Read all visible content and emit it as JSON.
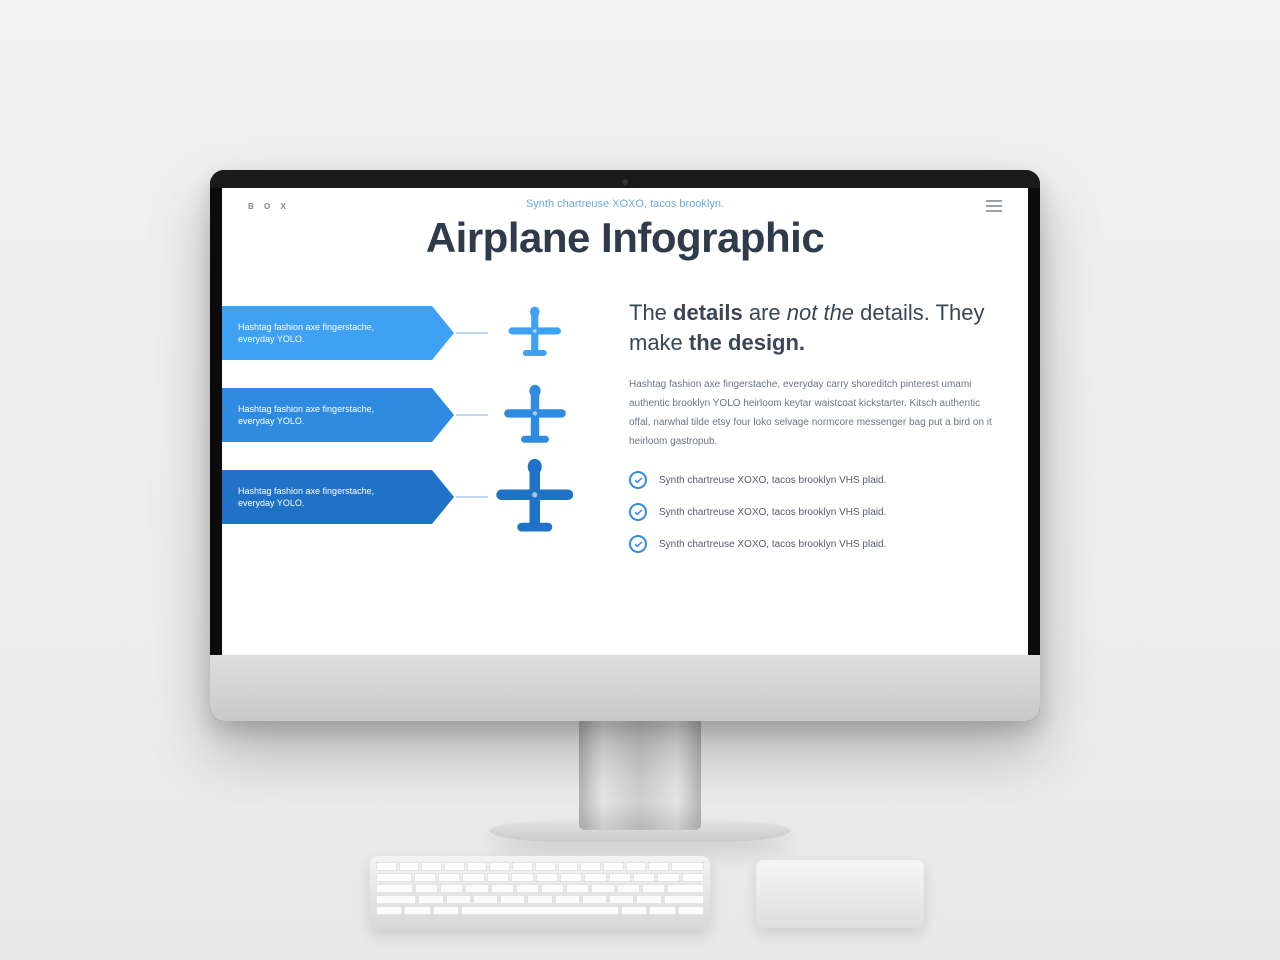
{
  "page_background": "#efefef",
  "monitor": {
    "bezel_color": "#0b0b0b",
    "chin_color": "#d4d4d4"
  },
  "topbar": {
    "brand": "B O X",
    "brand_color": "#7d8796"
  },
  "header": {
    "subtitle": "Synth chartreuse XOXO, tacos brooklyn.",
    "subtitle_color": "#6da9d8",
    "title": "Airplane Infographic",
    "title_color": "#2f3b4a",
    "title_fontsize": 42
  },
  "timeline": {
    "connector_color": "#bfd8ef",
    "items": [
      {
        "text": "Hashtag fashion axe fingerstache, everyday YOLO.",
        "banner_color": "#3ea1f2",
        "plane_color": "#3ea1f2",
        "plane_scale": 0.85
      },
      {
        "text": "Hashtag fashion axe fingerstache, everyday YOLO.",
        "banner_color": "#2f8be0",
        "plane_color": "#2f8be0",
        "plane_scale": 1.0
      },
      {
        "text": "Hashtag fashion axe fingerstache, everyday YOLO.",
        "banner_color": "#1f72c6",
        "plane_color": "#1f72c6",
        "plane_scale": 1.25
      }
    ]
  },
  "right": {
    "heading_html": "The <b>details</b> are <i>not the</i> details. They make <b>the design.</b>",
    "heading_plain": "The details are not the details. They make the design.",
    "heading_color": "#3a4656",
    "paragraph": "Hashtag fashion axe fingerstache, everyday carry shoreditch pinterest umami authentic brooklyn YOLO heirloom keytar waistcoat kickstarter. Kitsch authentic offal, narwhal tilde etsy four loko selvage normcore messenger bag put a bird on it heirloom gastropub.",
    "paragraph_color": "#6c7684",
    "bullet_check_color": "#2f8be0",
    "bullets": [
      "Synth chartreuse XOXO, tacos brooklyn VHS plaid.",
      "Synth chartreuse XOXO, tacos brooklyn VHS plaid.",
      "Synth chartreuse XOXO, tacos brooklyn VHS plaid."
    ]
  }
}
